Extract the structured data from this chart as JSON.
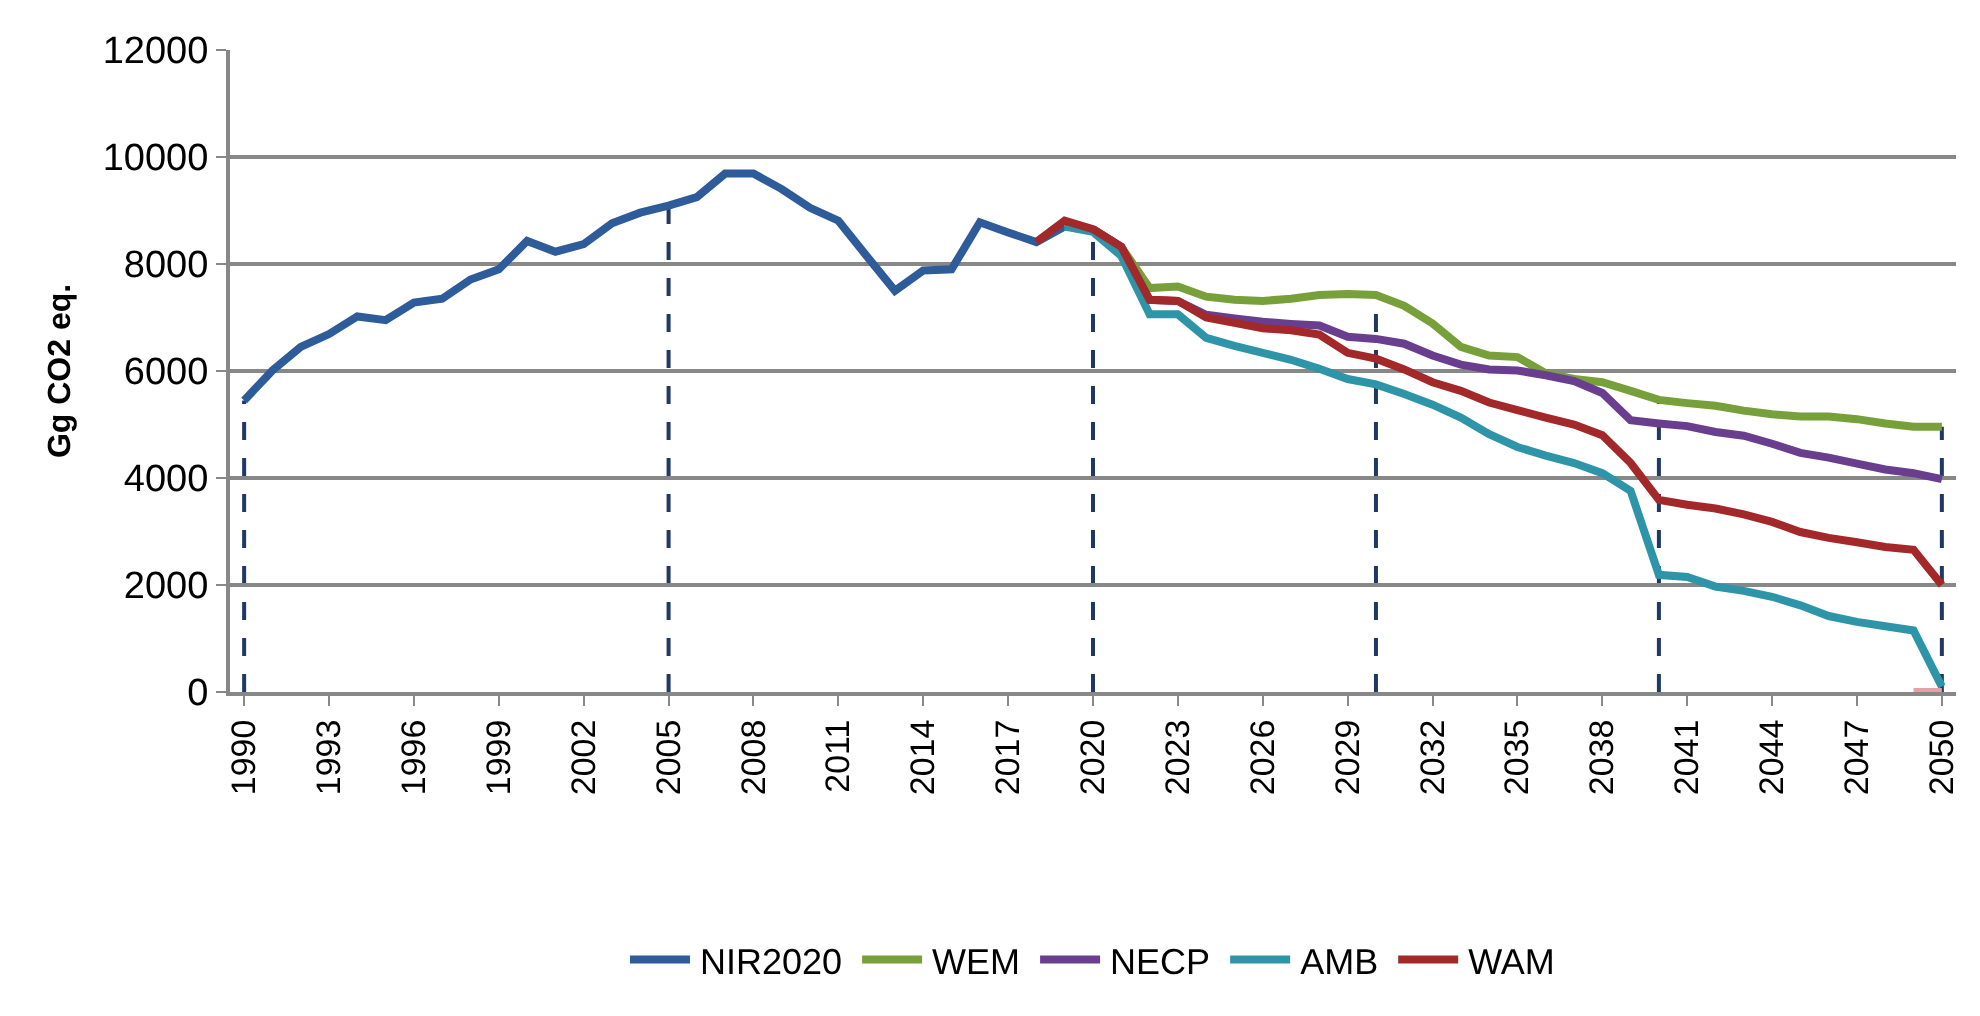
{
  "chart_data": {
    "type": "line",
    "ylabel": "Gg CO2 eq.",
    "ylim": [
      0,
      12000
    ],
    "yticks": [
      0,
      2000,
      4000,
      6000,
      8000,
      10000,
      12000
    ],
    "xlim": [
      1989.5,
      2050.5
    ],
    "xticks": [
      1990,
      1993,
      1996,
      1999,
      2002,
      2005,
      2008,
      2011,
      2014,
      2017,
      2020,
      2023,
      2026,
      2029,
      2032,
      2035,
      2038,
      2041,
      2044,
      2047,
      2050
    ],
    "grid": "y",
    "legend": "bottom",
    "marker": "none",
    "line_style": "solid",
    "series": [
      {
        "name": "NIR2020",
        "color": "#2e5c9a",
        "x": [
          1990,
          1991,
          1992,
          1993,
          1994,
          1995,
          1996,
          1997,
          1998,
          1999,
          2000,
          2001,
          2002,
          2003,
          2004,
          2005,
          2006,
          2007,
          2008,
          2009,
          2010,
          2011,
          2012,
          2013,
          2014,
          2015,
          2016,
          2017,
          2018,
          2019
        ],
        "values": [
          5450,
          6010,
          6450,
          6690,
          7020,
          6950,
          7280,
          7350,
          7710,
          7900,
          8430,
          8230,
          8370,
          8760,
          8960,
          9090,
          9250,
          9690,
          9690,
          9400,
          9050,
          8810,
          8150,
          7500,
          7880,
          7900,
          8780,
          8590,
          8410,
          8700
        ]
      },
      {
        "name": "WEM",
        "color": "#77a03a",
        "x": [
          2020,
          2021,
          2022,
          2023,
          2024,
          2025,
          2026,
          2027,
          2028,
          2029,
          2030,
          2031,
          2032,
          2033,
          2034,
          2035,
          2036,
          2037,
          2038,
          2039,
          2040,
          2041,
          2042,
          2043,
          2044,
          2045,
          2046,
          2047,
          2048,
          2049,
          2050
        ],
        "values": [
          8650,
          8320,
          7550,
          7580,
          7390,
          7330,
          7310,
          7350,
          7420,
          7440,
          7420,
          7220,
          6890,
          6450,
          6290,
          6260,
          5960,
          5850,
          5790,
          5630,
          5460,
          5400,
          5350,
          5260,
          5190,
          5150,
          5150,
          5100,
          5020,
          4960,
          4960
        ]
      },
      {
        "name": "NECP",
        "color": "#6a3e8e",
        "x": [
          2020,
          2021,
          2022,
          2023,
          2024,
          2025,
          2026,
          2027,
          2028,
          2029,
          2030,
          2031,
          2032,
          2033,
          2034,
          2035,
          2036,
          2037,
          2038,
          2039,
          2040,
          2041,
          2042,
          2043,
          2044,
          2045,
          2046,
          2047,
          2048,
          2049,
          2050
        ],
        "values": [
          8650,
          8320,
          7330,
          7310,
          7050,
          6980,
          6920,
          6880,
          6850,
          6640,
          6600,
          6510,
          6290,
          6120,
          6030,
          6010,
          5920,
          5810,
          5590,
          5080,
          5020,
          4970,
          4860,
          4790,
          4640,
          4470,
          4380,
          4270,
          4160,
          4090,
          3980
        ]
      },
      {
        "name": "AMB",
        "color": "#2e95a8",
        "x": [
          2019,
          2020,
          2021,
          2022,
          2023,
          2024,
          2025,
          2026,
          2027,
          2028,
          2029,
          2030,
          2031,
          2032,
          2033,
          2034,
          2035,
          2036,
          2037,
          2038,
          2039,
          2040,
          2041,
          2042,
          2043,
          2044,
          2045,
          2046,
          2047,
          2048,
          2049,
          2050
        ],
        "values": [
          8700,
          8600,
          8150,
          7060,
          7060,
          6620,
          6470,
          6340,
          6210,
          6040,
          5850,
          5750,
          5570,
          5370,
          5130,
          4820,
          4580,
          4420,
          4280,
          4090,
          3760,
          2190,
          2150,
          1970,
          1890,
          1780,
          1620,
          1420,
          1310,
          1230,
          1150,
          100
        ]
      },
      {
        "name": "WAM",
        "color": "#a3282a",
        "x": [
          2018,
          2019,
          2020,
          2021,
          2022,
          2023,
          2024,
          2025,
          2026,
          2027,
          2028,
          2029,
          2030,
          2031,
          2032,
          2033,
          2034,
          2035,
          2036,
          2037,
          2038,
          2039,
          2040,
          2041,
          2042,
          2043,
          2044,
          2045,
          2046,
          2047,
          2048,
          2049,
          2050
        ],
        "values": [
          8410,
          8810,
          8650,
          8320,
          7330,
          7310,
          7000,
          6900,
          6800,
          6760,
          6680,
          6340,
          6230,
          6030,
          5790,
          5630,
          5410,
          5270,
          5130,
          5000,
          4800,
          4280,
          3590,
          3500,
          3430,
          3320,
          3180,
          2990,
          2880,
          2800,
          2710,
          2660,
          2000
        ]
      },
      {
        "color": "#e8a0a8",
        "x": [
          2049,
          2050
        ],
        "values": [
          0,
          0
        ]
      }
    ],
    "ref_lines": [
      {
        "axis": "x",
        "value": 1990,
        "color": "#1f3864",
        "line_style": "dashed"
      },
      {
        "axis": "x",
        "value": 2005,
        "color": "#1f3864",
        "line_style": "dashed"
      },
      {
        "axis": "x",
        "value": 2020,
        "color": "#1f3864",
        "line_style": "dashed"
      },
      {
        "axis": "x",
        "value": 2030,
        "color": "#1f3864",
        "line_style": "dashed"
      },
      {
        "axis": "x",
        "value": 2040,
        "color": "#1f3864",
        "line_style": "dashed"
      },
      {
        "axis": "x",
        "value": 2050,
        "color": "#1f3864",
        "line_style": "dashed"
      }
    ]
  }
}
